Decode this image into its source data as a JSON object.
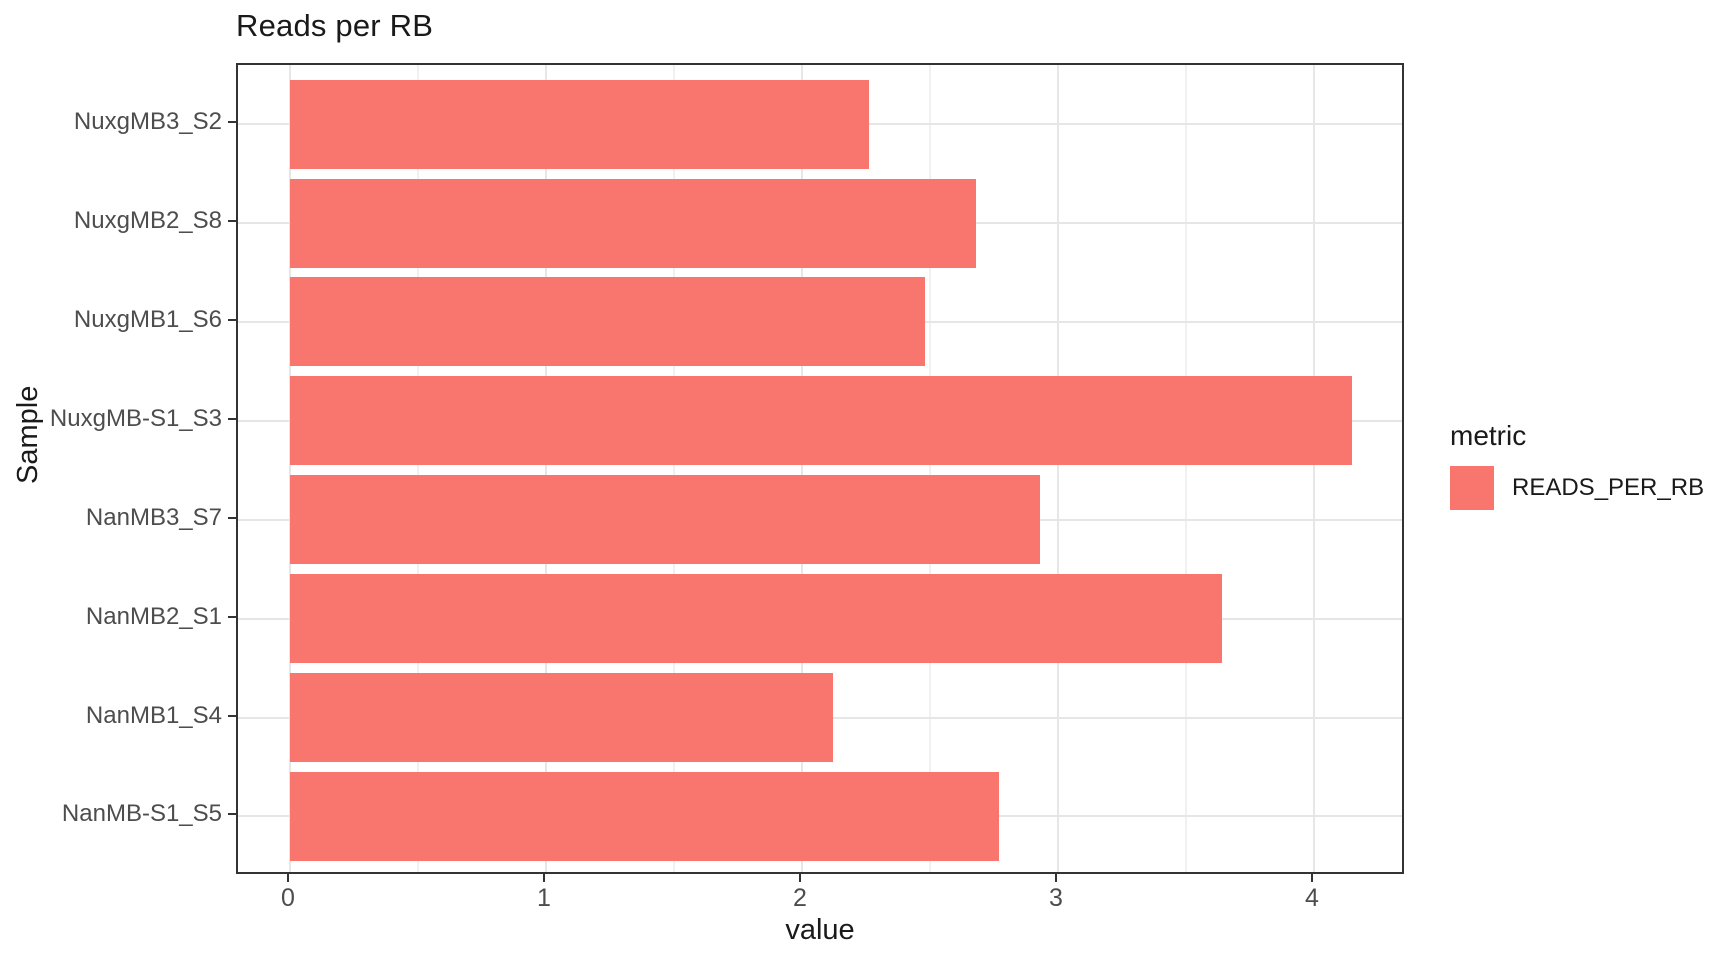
{
  "title": "Reads per RB",
  "chart_data": {
    "type": "bar",
    "orientation": "horizontal",
    "title": "Reads per RB",
    "xlabel": "value",
    "ylabel": "Sample",
    "categories": [
      "NuxgMB3_S2",
      "NuxgMB2_S8",
      "NuxgMB1_S6",
      "NuxgMB-S1_S3",
      "NanMB3_S7",
      "NanMB2_S1",
      "NanMB1_S4",
      "NanMB-S1_S5"
    ],
    "series": [
      {
        "name": "READS_PER_RB",
        "values": [
          2.26,
          2.68,
          2.48,
          4.15,
          2.93,
          3.64,
          2.12,
          2.77
        ]
      }
    ],
    "xlim": [
      -0.21,
      4.36
    ],
    "x_major_ticks": [
      0,
      1,
      2,
      3,
      4
    ],
    "x_minor_ticks": [
      0.5,
      1.5,
      2.5,
      3.5
    ],
    "grid": true,
    "legend_position": "right"
  },
  "legend": {
    "title": "metric",
    "entries": [
      {
        "label": "READS_PER_RB",
        "color": "#F8766D"
      }
    ]
  },
  "colors": {
    "bar": "#F8766D",
    "panel_border": "#333333",
    "grid_major": "#e6e6e6",
    "grid_minor": "#f1f1f1",
    "axis_text": "#4d4d4d",
    "title_text": "#1a1a1a",
    "background": "#ffffff"
  }
}
